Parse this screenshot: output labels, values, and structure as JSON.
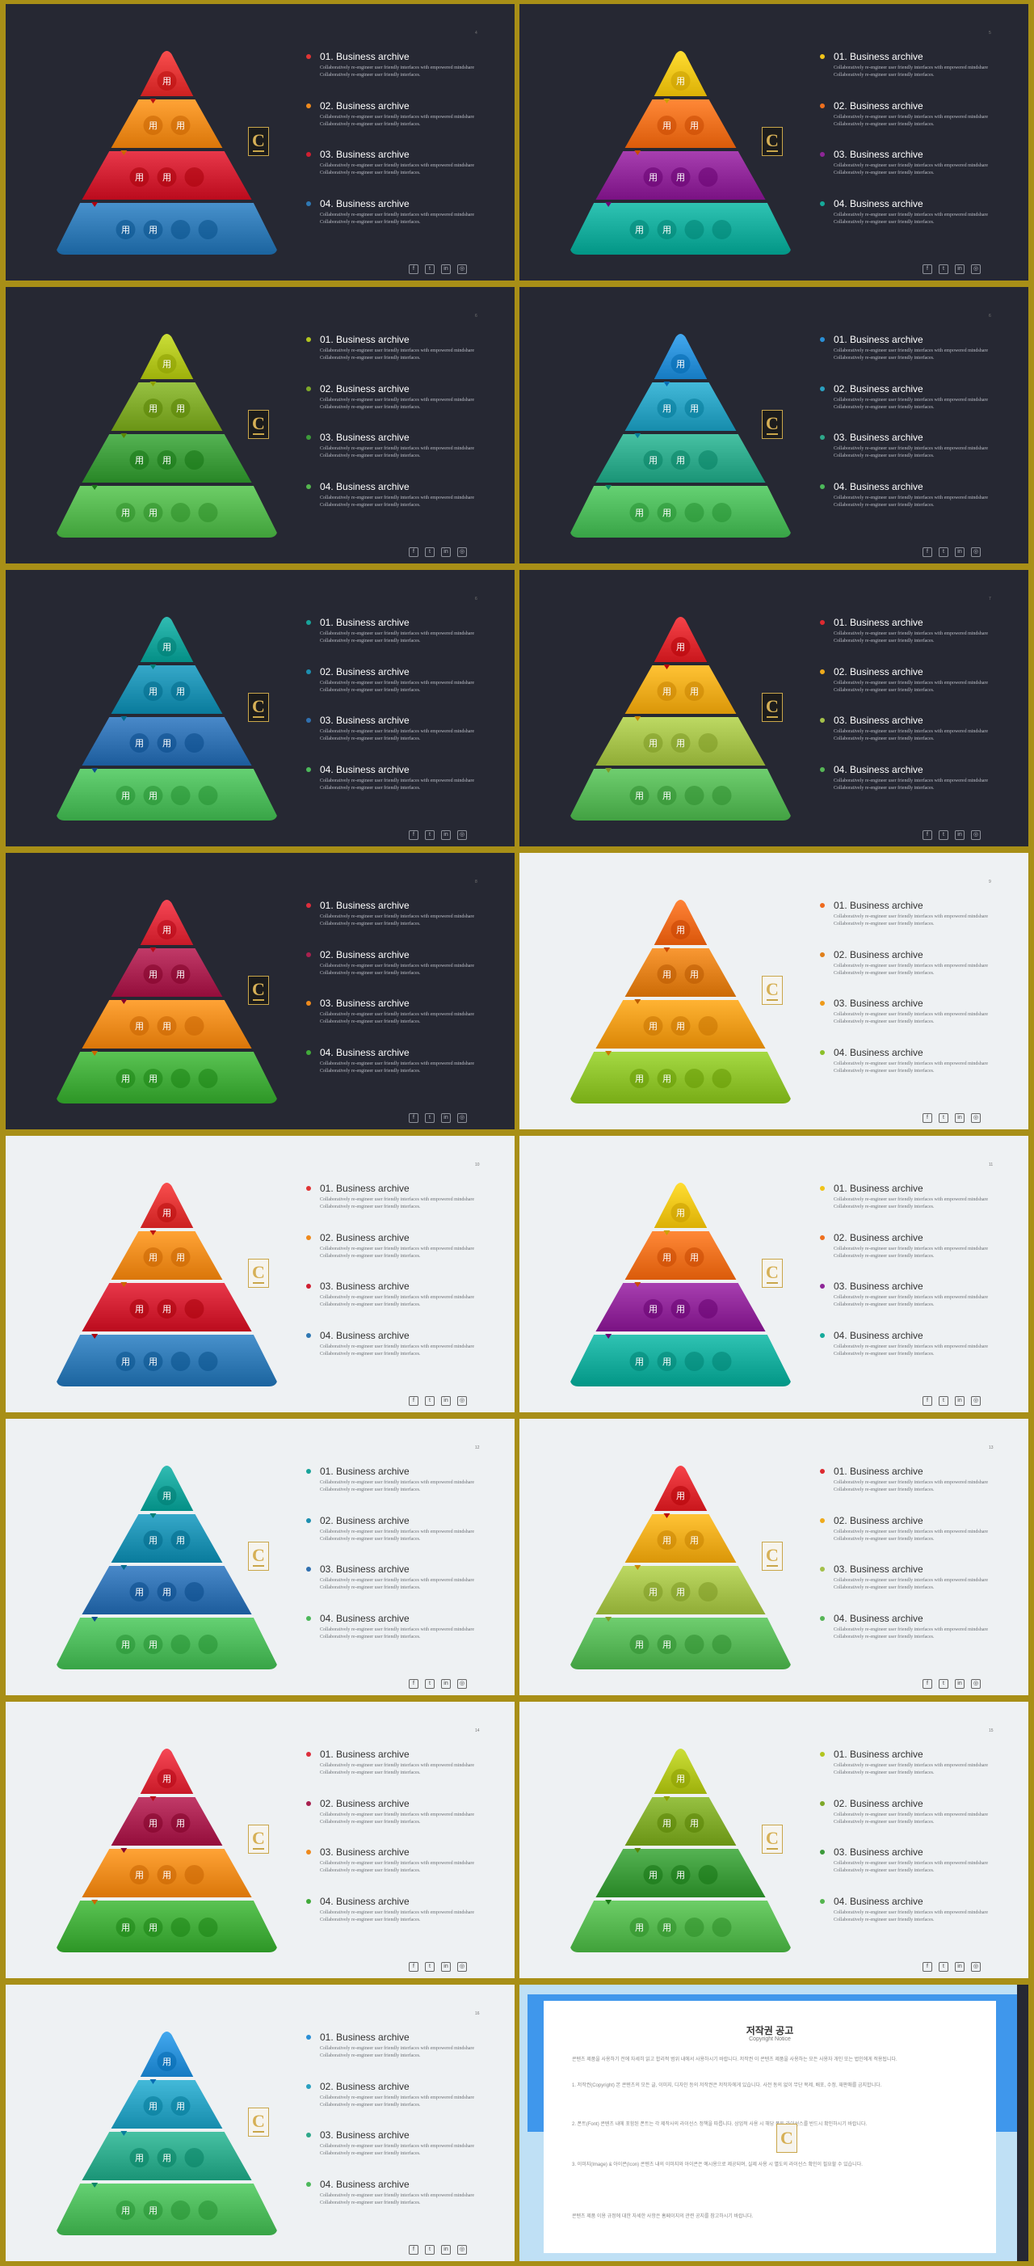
{
  "theme": {
    "dark_bg": "#262833",
    "light_bg": "#eef1f3",
    "frame": "#a88f17",
    "logo_gold": "#c9a64a"
  },
  "pyramid_glyphs": [
    "⽤",
    "⽤"
  ],
  "slides": [
    {
      "page": "4",
      "bg": "dark",
      "layers": [
        "#e03535",
        "#ee8a1d",
        "#cf1f31",
        "#2f78b3"
      ],
      "dots": [
        "#e03535",
        "#ee8a1d",
        "#cf1f31",
        "#2f78b3"
      ],
      "items": [
        {
          "title": "01. Business archive",
          "desc": "Collaboratively re-engineer user friendly interfaces with empowered mindshare Collaboratively re-engineer user friendly interfaces."
        },
        {
          "title": "02. Business archive",
          "desc": "Collaboratively re-engineer user friendly interfaces with empowered mindshare Collaboratively re-engineer user friendly interfaces."
        },
        {
          "title": "03. Business archive",
          "desc": "Collaboratively re-engineer user friendly interfaces with empowered mindshare Collaboratively re-engineer user friendly interfaces."
        },
        {
          "title": "04. Business archive",
          "desc": "Collaboratively re-engineer user friendly interfaces with empowered mindshare Collaboratively re-engineer user friendly interfaces."
        }
      ]
    },
    {
      "page": "5",
      "bg": "dark",
      "layers": [
        "#f0c419",
        "#ee6f1e",
        "#8e2697",
        "#16aa9a"
      ],
      "dots": [
        "#f0c419",
        "#ee6f1e",
        "#8e2697",
        "#16aa9a"
      ],
      "items": [
        {
          "title": "01. Business archive",
          "desc": "Collaboratively re-engineer user friendly interfaces with empowered mindshare Collaboratively re-engineer user friendly interfaces."
        },
        {
          "title": "02. Business archive",
          "desc": "Collaboratively re-engineer user friendly interfaces with empowered mindshare Collaboratively re-engineer user friendly interfaces."
        },
        {
          "title": "03. Business archive",
          "desc": "Collaboratively re-engineer user friendly interfaces with empowered mindshare Collaboratively re-engineer user friendly interfaces."
        },
        {
          "title": "04. Business archive",
          "desc": "Collaboratively re-engineer user friendly interfaces with empowered mindshare Collaboratively re-engineer user friendly interfaces."
        }
      ]
    },
    {
      "page": "6",
      "bg": "dark",
      "layers": [
        "#b2c51f",
        "#7ea829",
        "#3c9a3a",
        "#54b54e"
      ],
      "dots": [
        "#b2c51f",
        "#7ea829",
        "#3c9a3a",
        "#54b54e"
      ],
      "items": [
        {
          "title": "01. Business archive",
          "desc": "Collaboratively re-engineer user friendly interfaces with empowered mindshare Collaboratively re-engineer user friendly interfaces."
        },
        {
          "title": "02. Business archive",
          "desc": "Collaboratively re-engineer user friendly interfaces with empowered mindshare Collaboratively re-engineer user friendly interfaces."
        },
        {
          "title": "03. Business archive",
          "desc": "Collaboratively re-engineer user friendly interfaces with empowered mindshare Collaboratively re-engineer user friendly interfaces."
        },
        {
          "title": "04. Business archive",
          "desc": "Collaboratively re-engineer user friendly interfaces with empowered mindshare Collaboratively re-engineer user friendly interfaces."
        }
      ]
    },
    {
      "page": "6",
      "bg": "dark",
      "layers": [
        "#2a8fd6",
        "#2aa0c0",
        "#2ea88a",
        "#4cb85a"
      ],
      "dots": [
        "#2a8fd6",
        "#2aa0c0",
        "#2ea88a",
        "#4cb85a"
      ],
      "items": [
        {
          "title": "01. Business archive",
          "desc": "Collaboratively re-engineer user friendly interfaces with empowered mindshare Collaboratively re-engineer user friendly interfaces."
        },
        {
          "title": "02. Business archive",
          "desc": "Collaboratively re-engineer user friendly interfaces with empowered mindshare Collaboratively re-engineer user friendly interfaces."
        },
        {
          "title": "03. Business archive",
          "desc": "Collaboratively re-engineer user friendly interfaces with empowered mindshare Collaboratively re-engineer user friendly interfaces."
        },
        {
          "title": "04. Business archive",
          "desc": "Collaboratively re-engineer user friendly interfaces with empowered mindshare Collaboratively re-engineer user friendly interfaces."
        }
      ]
    },
    {
      "page": "6",
      "bg": "dark",
      "layers": [
        "#18a39a",
        "#1d8fb0",
        "#3070b0",
        "#4cb85a"
      ],
      "dots": [
        "#18a39a",
        "#1d8fb0",
        "#3070b0",
        "#4cb85a"
      ],
      "items": [
        {
          "title": "01. Business archive",
          "desc": "Collaboratively re-engineer user friendly interfaces with empowered mindshare Collaboratively re-engineer user friendly interfaces."
        },
        {
          "title": "02. Business archive",
          "desc": "Collaboratively re-engineer user friendly interfaces with empowered mindshare Collaboratively re-engineer user friendly interfaces."
        },
        {
          "title": "03. Business archive",
          "desc": "Collaboratively re-engineer user friendly interfaces with empowered mindshare Collaboratively re-engineer user friendly interfaces."
        },
        {
          "title": "04. Business archive",
          "desc": "Collaboratively re-engineer user friendly interfaces with empowered mindshare Collaboratively re-engineer user friendly interfaces."
        }
      ]
    },
    {
      "page": "7",
      "bg": "dark",
      "layers": [
        "#dd2a30",
        "#eeaa1c",
        "#a4c04a",
        "#56b556"
      ],
      "dots": [
        "#dd2a30",
        "#eeaa1c",
        "#a4c04a",
        "#56b556"
      ],
      "items": [
        {
          "title": "01. Business archive",
          "desc": "Collaboratively re-engineer user friendly interfaces with empowered mindshare Collaboratively re-engineer user friendly interfaces."
        },
        {
          "title": "02. Business archive",
          "desc": "Collaboratively re-engineer user friendly interfaces with empowered mindshare Collaboratively re-engineer user friendly interfaces."
        },
        {
          "title": "03. Business archive",
          "desc": "Collaboratively re-engineer user friendly interfaces with empowered mindshare Collaboratively re-engineer user friendly interfaces."
        },
        {
          "title": "04. Business archive",
          "desc": "Collaboratively re-engineer user friendly interfaces with empowered mindshare Collaboratively re-engineer user friendly interfaces."
        }
      ]
    },
    {
      "page": "8",
      "bg": "dark",
      "layers": [
        "#dd2e3c",
        "#a8214f",
        "#ee8a1d",
        "#41aa3a"
      ],
      "dots": [
        "#dd2e3c",
        "#a8214f",
        "#ee8a1d",
        "#41aa3a"
      ],
      "items": [
        {
          "title": "01. Business archive",
          "desc": "Collaboratively re-engineer user friendly interfaces with empowered mindshare Collaboratively re-engineer user friendly interfaces."
        },
        {
          "title": "02. Business archive",
          "desc": "Collaboratively re-engineer user friendly interfaces with empowered mindshare Collaboratively re-engineer user friendly interfaces."
        },
        {
          "title": "03. Business archive",
          "desc": "Collaboratively re-engineer user friendly interfaces with empowered mindshare Collaboratively re-engineer user friendly interfaces."
        },
        {
          "title": "04. Business archive",
          "desc": "Collaboratively re-engineer user friendly interfaces with empowered mindshare Collaboratively re-engineer user friendly interfaces."
        }
      ]
    },
    {
      "page": "9",
      "bg": "light",
      "layers": [
        "#ee6a1e",
        "#e07f1a",
        "#ee9a1a",
        "#8cc02a"
      ],
      "dots": [
        "#ee6a1e",
        "#e07f1a",
        "#ee9a1a",
        "#8cc02a"
      ],
      "items": [
        {
          "title": "01. Business archive",
          "desc": "Collaboratively re-engineer user friendly interfaces with empowered mindshare Collaboratively re-engineer user friendly interfaces."
        },
        {
          "title": "02. Business archive",
          "desc": "Collaboratively re-engineer user friendly interfaces with empowered mindshare Collaboratively re-engineer user friendly interfaces."
        },
        {
          "title": "03. Business archive",
          "desc": "Collaboratively re-engineer user friendly interfaces with empowered mindshare Collaboratively re-engineer user friendly interfaces."
        },
        {
          "title": "04. Business archive",
          "desc": "Collaboratively re-engineer user friendly interfaces with empowered mindshare Collaboratively re-engineer user friendly interfaces."
        }
      ]
    },
    {
      "page": "10",
      "bg": "light",
      "layers": [
        "#e03535",
        "#ee8a1d",
        "#cf1f31",
        "#2f78b3"
      ],
      "dots": [
        "#e03535",
        "#ee8a1d",
        "#cf1f31",
        "#2f78b3"
      ],
      "items": [
        {
          "title": "01. Business archive",
          "desc": "Collaboratively re-engineer user friendly interfaces with empowered mindshare Collaboratively re-engineer user friendly interfaces."
        },
        {
          "title": "02. Business archive",
          "desc": "Collaboratively re-engineer user friendly interfaces with empowered mindshare Collaboratively re-engineer user friendly interfaces."
        },
        {
          "title": "03. Business archive",
          "desc": "Collaboratively re-engineer user friendly interfaces with empowered mindshare Collaboratively re-engineer user friendly interfaces."
        },
        {
          "title": "04. Business archive",
          "desc": "Collaboratively re-engineer user friendly interfaces with empowered mindshare Collaboratively re-engineer user friendly interfaces."
        }
      ]
    },
    {
      "page": "11",
      "bg": "light",
      "layers": [
        "#f0c419",
        "#ee6f1e",
        "#8e2697",
        "#16aa9a"
      ],
      "dots": [
        "#f0c419",
        "#ee6f1e",
        "#8e2697",
        "#16aa9a"
      ],
      "items": [
        {
          "title": "01. Business archive",
          "desc": "Collaboratively re-engineer user friendly interfaces with empowered mindshare Collaboratively re-engineer user friendly interfaces."
        },
        {
          "title": "02. Business archive",
          "desc": "Collaboratively re-engineer user friendly interfaces with empowered mindshare Collaboratively re-engineer user friendly interfaces."
        },
        {
          "title": "03. Business archive",
          "desc": "Collaboratively re-engineer user friendly interfaces with empowered mindshare Collaboratively re-engineer user friendly interfaces."
        },
        {
          "title": "04. Business archive",
          "desc": "Collaboratively re-engineer user friendly interfaces with empowered mindshare Collaboratively re-engineer user friendly interfaces."
        }
      ]
    },
    {
      "page": "12",
      "bg": "light",
      "layers": [
        "#18a39a",
        "#1d8fb0",
        "#3070b0",
        "#4cb85a"
      ],
      "dots": [
        "#18a39a",
        "#1d8fb0",
        "#3070b0",
        "#4cb85a"
      ],
      "items": [
        {
          "title": "01. Business archive",
          "desc": "Collaboratively re-engineer user friendly interfaces with empowered mindshare Collaboratively re-engineer user friendly interfaces."
        },
        {
          "title": "02. Business archive",
          "desc": "Collaboratively re-engineer user friendly interfaces with empowered mindshare Collaboratively re-engineer user friendly interfaces."
        },
        {
          "title": "03. Business archive",
          "desc": "Collaboratively re-engineer user friendly interfaces with empowered mindshare Collaboratively re-engineer user friendly interfaces."
        },
        {
          "title": "04. Business archive",
          "desc": "Collaboratively re-engineer user friendly interfaces with empowered mindshare Collaboratively re-engineer user friendly interfaces."
        }
      ]
    },
    {
      "page": "13",
      "bg": "light",
      "layers": [
        "#dd2a30",
        "#eeaa1c",
        "#a4c04a",
        "#56b556"
      ],
      "dots": [
        "#dd2a30",
        "#eeaa1c",
        "#a4c04a",
        "#56b556"
      ],
      "items": [
        {
          "title": "01. Business archive",
          "desc": "Collaboratively re-engineer user friendly interfaces with empowered mindshare Collaboratively re-engineer user friendly interfaces."
        },
        {
          "title": "02. Business archive",
          "desc": "Collaboratively re-engineer user friendly interfaces with empowered mindshare Collaboratively re-engineer user friendly interfaces."
        },
        {
          "title": "03. Business archive",
          "desc": "Collaboratively re-engineer user friendly interfaces with empowered mindshare Collaboratively re-engineer user friendly interfaces."
        },
        {
          "title": "04. Business archive",
          "desc": "Collaboratively re-engineer user friendly interfaces with empowered mindshare Collaboratively re-engineer user friendly interfaces."
        }
      ]
    },
    {
      "page": "14",
      "bg": "light",
      "layers": [
        "#dd2e3c",
        "#a8214f",
        "#ee8a1d",
        "#41aa3a"
      ],
      "dots": [
        "#dd2e3c",
        "#a8214f",
        "#ee8a1d",
        "#41aa3a"
      ],
      "items": [
        {
          "title": "01. Business archive",
          "desc": "Collaboratively re-engineer user friendly interfaces with empowered mindshare Collaboratively re-engineer user friendly interfaces."
        },
        {
          "title": "02. Business archive",
          "desc": "Collaboratively re-engineer user friendly interfaces with empowered mindshare Collaboratively re-engineer user friendly interfaces."
        },
        {
          "title": "03. Business archive",
          "desc": "Collaboratively re-engineer user friendly interfaces with empowered mindshare Collaboratively re-engineer user friendly interfaces."
        },
        {
          "title": "04. Business archive",
          "desc": "Collaboratively re-engineer user friendly interfaces with empowered mindshare Collaboratively re-engineer user friendly interfaces."
        }
      ]
    },
    {
      "page": "15",
      "bg": "light",
      "layers": [
        "#b2c51f",
        "#7ea829",
        "#3c9a3a",
        "#54b54e"
      ],
      "dots": [
        "#b2c51f",
        "#7ea829",
        "#3c9a3a",
        "#54b54e"
      ],
      "items": [
        {
          "title": "01. Business archive",
          "desc": "Collaboratively re-engineer user friendly interfaces with empowered mindshare Collaboratively re-engineer user friendly interfaces."
        },
        {
          "title": "02. Business archive",
          "desc": "Collaboratively re-engineer user friendly interfaces with empowered mindshare Collaboratively re-engineer user friendly interfaces."
        },
        {
          "title": "03. Business archive",
          "desc": "Collaboratively re-engineer user friendly interfaces with empowered mindshare Collaboratively re-engineer user friendly interfaces."
        },
        {
          "title": "04. Business archive",
          "desc": "Collaboratively re-engineer user friendly interfaces with empowered mindshare Collaboratively re-engineer user friendly interfaces."
        }
      ]
    },
    {
      "page": "16",
      "bg": "light",
      "layers": [
        "#2a8fd6",
        "#2aa0c0",
        "#2ea88a",
        "#4cb85a"
      ],
      "dots": [
        "#2a8fd6",
        "#2aa0c0",
        "#2ea88a",
        "#4cb85a"
      ],
      "items": [
        {
          "title": "01. Business archive",
          "desc": "Collaboratively re-engineer user friendly interfaces with empowered mindshare Collaboratively re-engineer user friendly interfaces."
        },
        {
          "title": "02. Business archive",
          "desc": "Collaboratively re-engineer user friendly interfaces with empowered mindshare Collaboratively re-engineer user friendly interfaces."
        },
        {
          "title": "03. Business archive",
          "desc": "Collaboratively re-engineer user friendly interfaces with empowered mindshare Collaboratively re-engineer user friendly interfaces."
        },
        {
          "title": "04. Business archive",
          "desc": "Collaboratively re-engineer user friendly interfaces with empowered mindshare Collaboratively re-engineer user friendly interfaces."
        }
      ]
    }
  ],
  "social_icons": [
    "f",
    "t",
    "in",
    "◎"
  ],
  "notice": {
    "title": "저작권 공고",
    "subtitle": "Copyright Notice",
    "paragraphs": [
      "콘텐츠 제품을 사용하기 전에 자세히 읽고 합리적 범위 내에서 사용하시기 바랍니다. 저작권 이 콘텐츠 제품을 사용하는 모든 사용자 개인 또는 법인에게 적용됩니다.",
      "1. 저작권(Copyright) 본 콘텐츠의 모든 글, 이미지, 디자인 등의 저작권은 저작자에게 있습니다. 사전 동의 없이 무단 복제, 배포, 수정, 재판매를 금지합니다.",
      "2. 폰트(Font) 콘텐츠 내에 포함된 폰트는 각 제작사의 라이선스 정책을 따릅니다. 상업적 사용 시 해당 폰트 라이선스를 반드시 확인하시기 바랍니다.",
      "3. 이미지(Image) & 아이콘(Icon) 콘텐츠 내의 이미지와 아이콘은 예시용으로 제공되며, 실제 사용 시 별도의 라이선스 확인이 필요할 수 있습니다.",
      "콘텐츠 제품 이용 규정에 대한 자세한 사항은 홈페이지의 관련 공지를 참고하시기 바랍니다."
    ]
  }
}
